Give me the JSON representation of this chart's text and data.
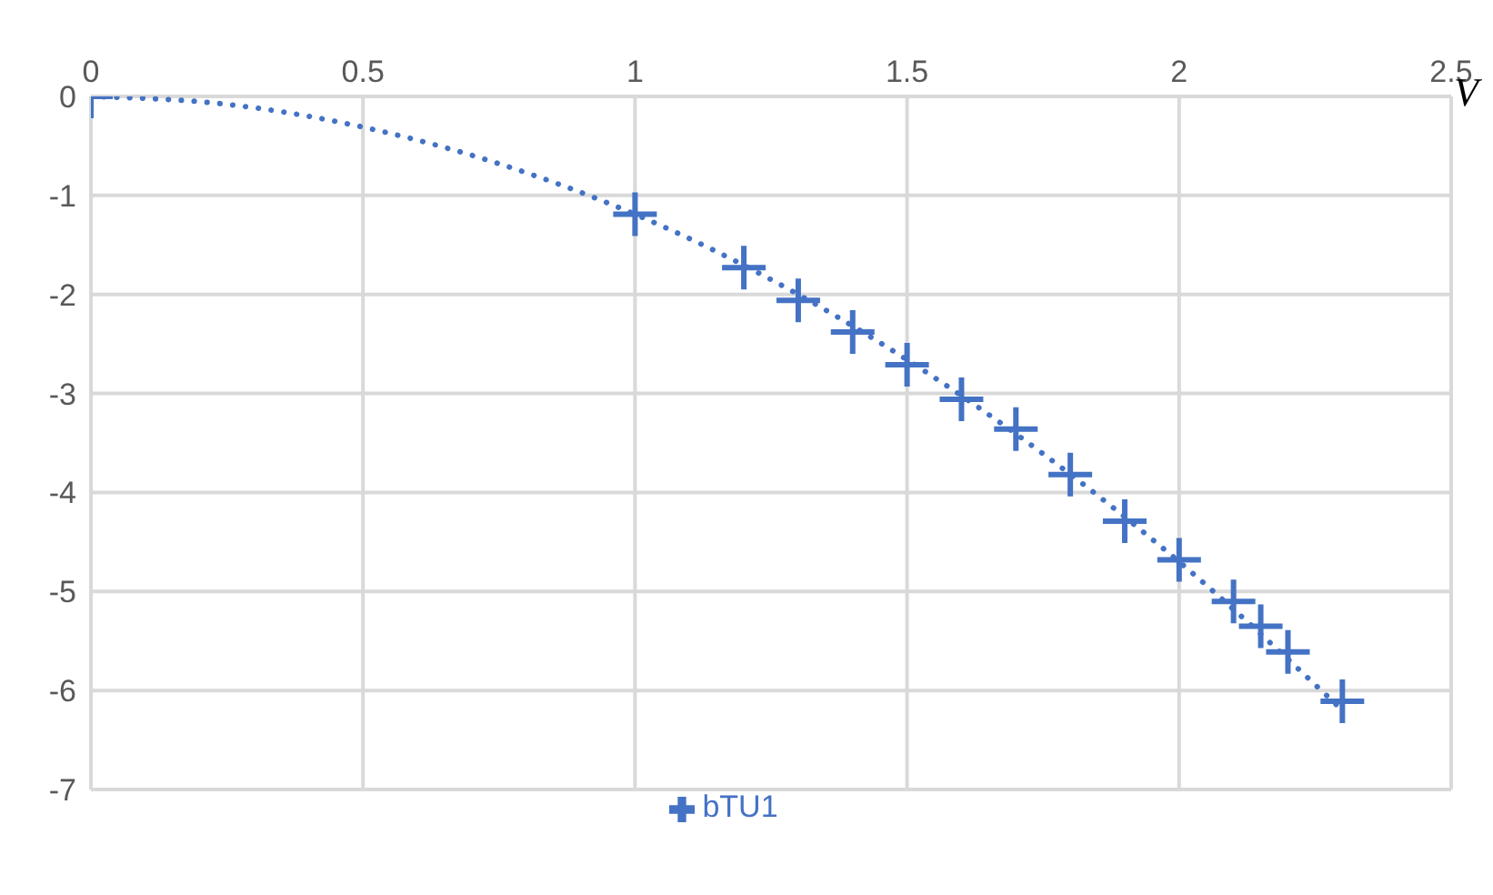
{
  "chart_data": {
    "type": "scatter",
    "xlabel": "V",
    "xlim": [
      0,
      2.5
    ],
    "xticks": [
      0,
      0.5,
      1,
      1.5,
      2,
      2.5
    ],
    "ylim": [
      -7,
      0
    ],
    "yticks": [
      0,
      -1,
      -2,
      -3,
      -4,
      -5,
      -6,
      -7
    ],
    "grid": true,
    "legend": "bottom",
    "marker": "cross",
    "series": [
      {
        "name": "bTU1",
        "color": "#4472c4",
        "x": [
          0,
          1,
          1.2,
          1.3,
          1.4,
          1.5,
          1.6,
          1.7,
          1.8,
          1.9,
          2,
          2.1,
          2.15,
          2.2,
          2.3
        ],
        "values": [
          0,
          -1.19,
          -1.73,
          -2.06,
          -2.38,
          -2.71,
          -3.06,
          -3.36,
          -3.82,
          -4.29,
          -4.68,
          -5.1,
          -5.35,
          -5.61,
          -6.11
        ]
      },
      {
        "type": "line",
        "color": "#4472c4",
        "line_style": "dotted",
        "marker": "none",
        "x": [
          0,
          0.25,
          0.5,
          0.75,
          1,
          1.25,
          1.5,
          1.75,
          2,
          2.3
        ],
        "values": [
          0,
          -0.08,
          -0.31,
          -0.68,
          -1.19,
          -1.85,
          -2.66,
          -3.61,
          -4.7,
          -6.2
        ]
      }
    ]
  }
}
